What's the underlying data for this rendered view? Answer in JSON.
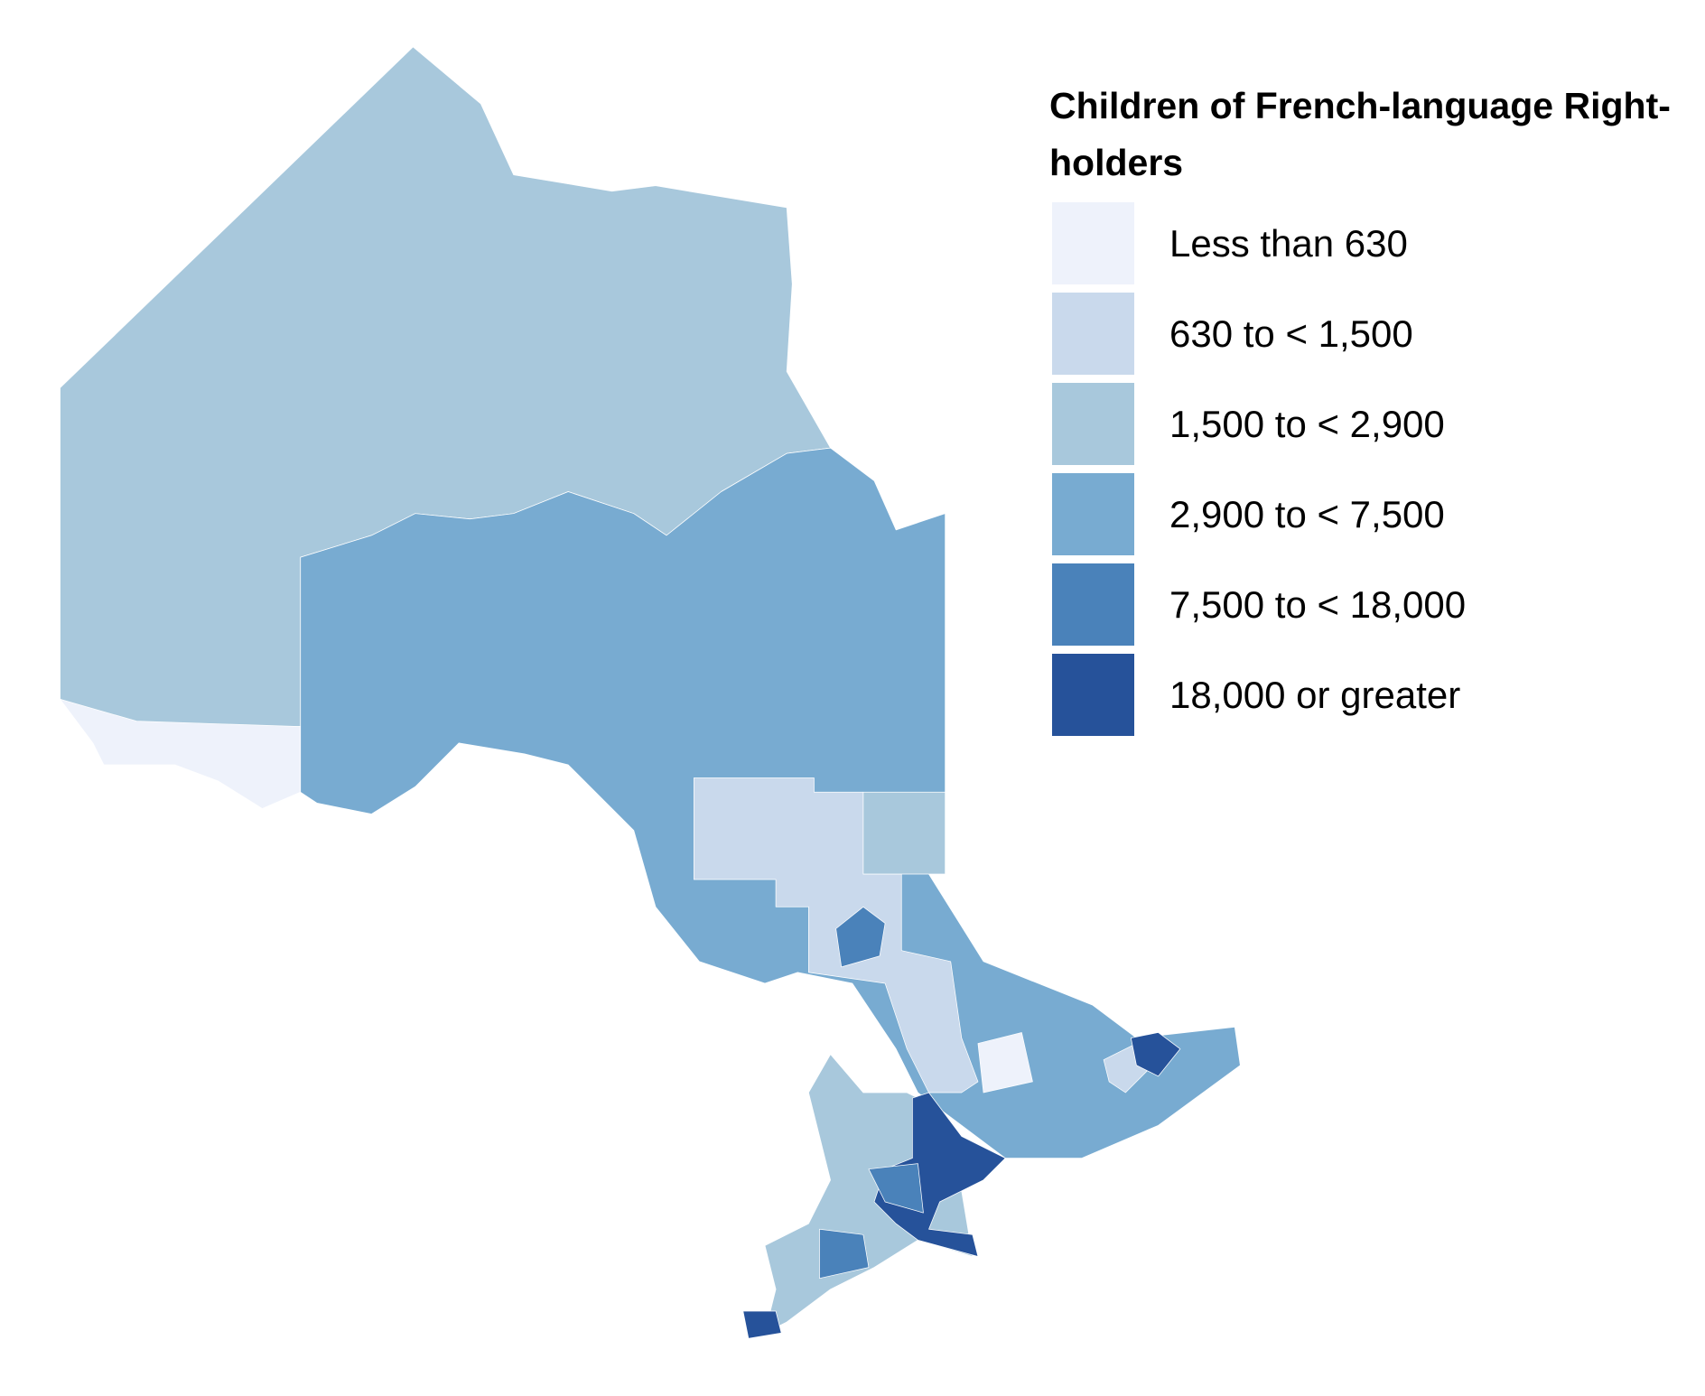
{
  "legend": {
    "title": "Children of French-language Right-holders",
    "items": [
      {
        "label": "Less than 630",
        "color": "#eef2fb"
      },
      {
        "label": "630 to < 1,500",
        "color": "#c9d9ec"
      },
      {
        "label": "1,500 to < 2,900",
        "color": "#a8c8dc"
      },
      {
        "label": "2,900 to < 7,500",
        "color": "#78abd1"
      },
      {
        "label": "7,500 to < 18,000",
        "color": "#4a82ba"
      },
      {
        "label": "18,000 or greater",
        "color": "#26529a"
      }
    ]
  }
}
